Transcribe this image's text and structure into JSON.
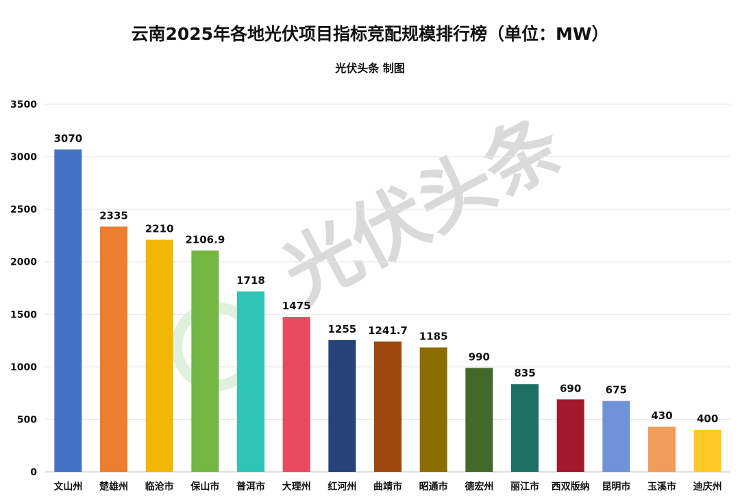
{
  "chart_data": {
    "type": "bar",
    "title": "云南2025年各地光伏项目指标竞配规模排行榜（单位：MW）",
    "subtitle": "光伏头条 制图",
    "watermark": "光伏头条",
    "xlabel": "",
    "ylabel": "",
    "ylim": [
      0,
      3500
    ],
    "yticks": [
      0,
      500,
      1000,
      1500,
      2000,
      2500,
      3000,
      3500
    ],
    "grid": true,
    "categories": [
      "文山州",
      "楚雄州",
      "临沧市",
      "保山市",
      "普洱市",
      "大理州",
      "红河州",
      "曲靖市",
      "昭通市",
      "德宏州",
      "丽江市",
      "西双版纳",
      "昆明市",
      "玉溪市",
      "迪庆州"
    ],
    "values": [
      3070,
      2335,
      2210,
      2106.9,
      1718,
      1475,
      1255,
      1241.7,
      1185,
      990,
      835,
      690,
      675,
      430,
      400
    ],
    "colors": [
      "#4472C4",
      "#ED7D31",
      "#F2B705",
      "#74B743",
      "#2EC4B6",
      "#E84A5F",
      "#264478",
      "#9E480E",
      "#8C6D00",
      "#43682B",
      "#1E7066",
      "#A3182A",
      "#6F93D6",
      "#F19C5A",
      "#FFCA28"
    ]
  }
}
